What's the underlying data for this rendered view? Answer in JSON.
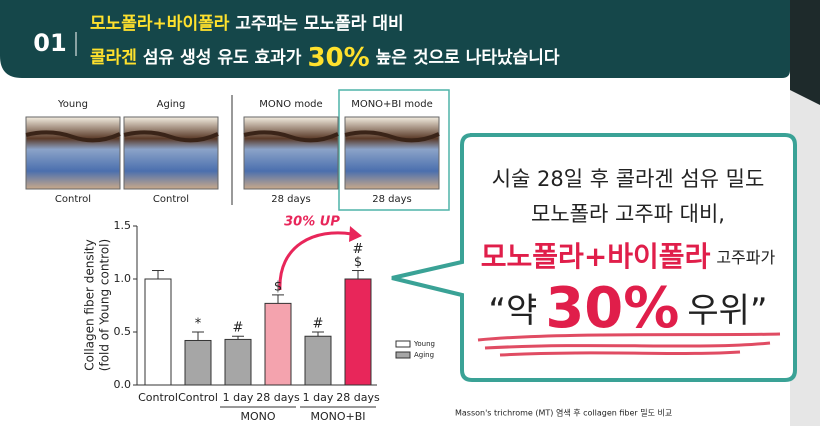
{
  "header": {
    "number": "01",
    "line1": {
      "highlight": "모노폴라+바이폴라",
      "rest": "고주파는 모노폴라 대비"
    },
    "line2": {
      "highlight": "콜라겐",
      "middle": "섬유 생성 유도 효과가",
      "value": "30%",
      "rest": "높은 것으로 나타났습니다"
    }
  },
  "images": [
    {
      "top": "Young",
      "bottom": "Control"
    },
    {
      "top": "Aging",
      "bottom": "Control"
    },
    {
      "top": "MONO mode",
      "bottom": "28 days"
    },
    {
      "top": "MONO+BI mode",
      "bottom": "28 days"
    }
  ],
  "chart_data": {
    "type": "bar",
    "y_label": [
      "Collagen fiber density",
      "(fold of Young control)"
    ],
    "categories": [
      "Control",
      "Control",
      "1 day",
      "28 days",
      "1 day",
      "28 days"
    ],
    "groups": [
      "MONO",
      "MONO+BI"
    ],
    "values": [
      1.0,
      0.42,
      0.43,
      0.77,
      0.46,
      1.0
    ],
    "errors": [
      0.08,
      0.08,
      0.03,
      0.08,
      0.04,
      0.08
    ],
    "colors": [
      "#ffffff",
      "#a6a6a6",
      "#a6a6a6",
      "#f4a3ae",
      "#a6a6a6",
      "#e8265a"
    ],
    "annotations": [
      null,
      [
        "*"
      ],
      [
        "#"
      ],
      [
        "$"
      ],
      [
        "#"
      ],
      [
        "#",
        "$"
      ]
    ],
    "highlight": "30% UP",
    "ylim": [
      0,
      1.5
    ],
    "yticks": [
      {
        "value": 0,
        "label": "0.0"
      },
      {
        "value": 0.5,
        "label": "0.5"
      },
      {
        "value": 1,
        "label": "1.0"
      },
      {
        "value": 1.5,
        "label": "1.5"
      }
    ],
    "legend": [
      {
        "name": "Young",
        "color": "#ffffff"
      },
      {
        "name": "Aging",
        "color": "#a6a6a6"
      }
    ]
  },
  "callout": {
    "line1": "시술 28일 후 콜라겐 섬유 밀도",
    "line2": "모노폴라 고주파 대비,",
    "line3": {
      "highlight": "모노폴라+바이폴라",
      "rest": "고주파가"
    },
    "line4": {
      "open": "“약",
      "value": "30%",
      "close": "우위”"
    }
  },
  "caption": "Masson's trichrome (MT) 염색 후 collagen fiber 밀도 비교"
}
